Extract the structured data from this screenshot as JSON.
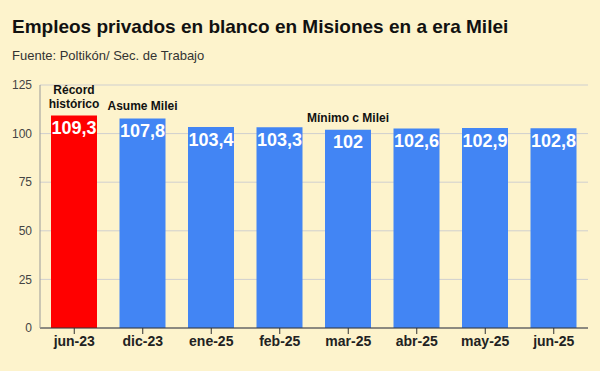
{
  "chart_data": {
    "type": "bar",
    "title": "Empleos privados en blanco en Misiones en a era Milei",
    "subtitle": "Fuente: Poltikón/ Sec. de Trabajo",
    "categories": [
      "jun-23",
      "dic-23",
      "ene-25",
      "feb-25",
      "mar-25",
      "abr-25",
      "may-25",
      "jun-25"
    ],
    "values": [
      109.3,
      107.8,
      103.4,
      103.3,
      102,
      102.6,
      102.9,
      102.8
    ],
    "value_labels": [
      "109,3",
      "107,8",
      "103,4",
      "103,3",
      "102",
      "102,6",
      "102,9",
      "102,8"
    ],
    "colors": [
      "#ff0000",
      "#4285f4",
      "#4285f4",
      "#4285f4",
      "#4285f4",
      "#4285f4",
      "#4285f4",
      "#4285f4"
    ],
    "ylim": [
      0,
      125
    ],
    "yticks": [
      0,
      25,
      50,
      75,
      100,
      125
    ],
    "grid": true,
    "data_labels": true,
    "annotations": [
      {
        "text": "Récord histórico",
        "category": "jun-23"
      },
      {
        "text": "Asume Milei",
        "category": "dic-23"
      },
      {
        "text": "Mínimo c Milei",
        "category": "mar-25"
      }
    ]
  }
}
